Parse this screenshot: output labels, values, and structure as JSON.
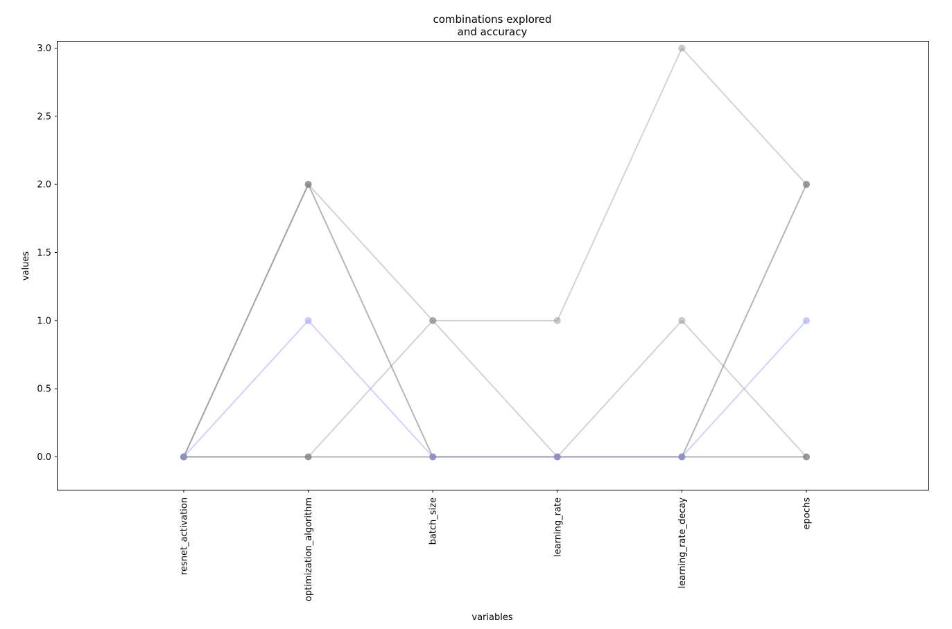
{
  "chart_data": {
    "type": "line",
    "title_lines": [
      "combinations explored",
      "and accuracy"
    ],
    "xlabel": "variables",
    "ylabel": "values",
    "categories": [
      "resnet_activation",
      "optimization_algorithm",
      "batch_size",
      "learning_rate",
      "learning_rate_decay",
      "epochs"
    ],
    "ylim": [
      -0.25,
      3.05
    ],
    "yticks": [
      "0.0",
      "0.5",
      "1.0",
      "1.5",
      "2.0",
      "2.5",
      "3.0"
    ],
    "grid": false,
    "legend": "none",
    "series": [
      {
        "values": [
          0,
          2,
          1,
          0,
          1,
          0
        ],
        "color": "#808080",
        "opacity": 0.35
      },
      {
        "values": [
          0,
          0,
          1,
          1,
          3,
          2
        ],
        "color": "#808080",
        "opacity": 0.35
      },
      {
        "values": [
          0,
          2,
          0,
          0,
          0,
          0
        ],
        "color": "#808080",
        "opacity": 0.35
      },
      {
        "values": [
          0,
          2,
          0,
          0,
          0,
          2
        ],
        "color": "#808080",
        "opacity": 0.35
      },
      {
        "values": [
          0,
          0,
          0,
          0,
          0,
          2
        ],
        "color": "#808080",
        "opacity": 0.35
      },
      {
        "values": [
          0,
          0,
          0,
          0,
          0,
          0
        ],
        "color": "#808080",
        "opacity": 0.35
      },
      {
        "values": [
          0,
          1,
          0,
          0,
          0,
          1
        ],
        "color": "#9a9aff",
        "opacity": 0.45
      }
    ]
  }
}
